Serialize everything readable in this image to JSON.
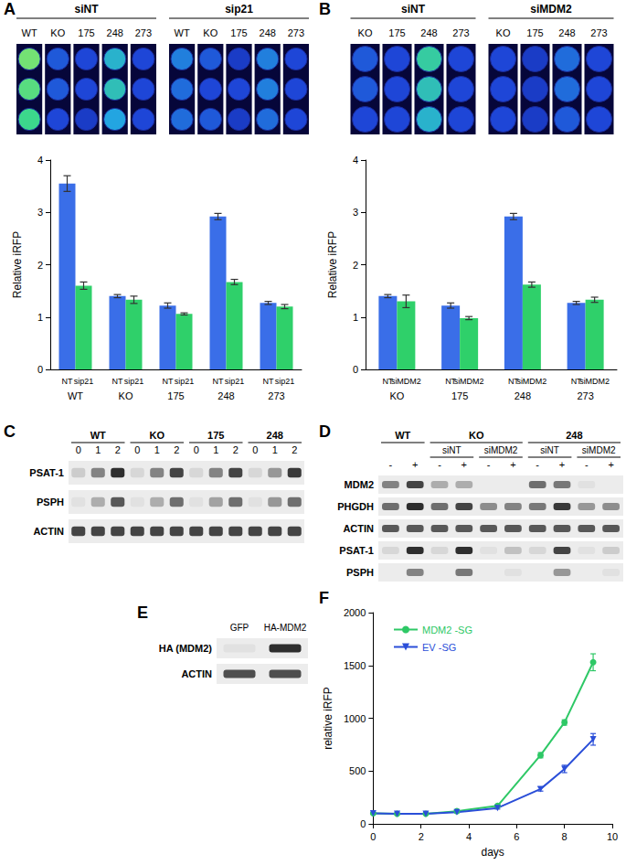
{
  "chart_data": [
    {
      "panel": "A",
      "type": "bar",
      "ylabel": "Relative iRFP",
      "ylim": [
        0,
        4
      ],
      "yticks": [
        0,
        1,
        2,
        3,
        4
      ],
      "categories": [
        "WT",
        "KO",
        "175",
        "248",
        "273"
      ],
      "series": [
        {
          "name": "NT",
          "color": "#3a6ee8",
          "values": [
            3.55,
            1.4,
            1.22,
            2.92,
            1.27
          ],
          "errors": [
            0.15,
            0.03,
            0.05,
            0.06,
            0.03
          ]
        },
        {
          "name": "sip21",
          "color": "#2fd06a",
          "values": [
            1.6,
            1.33,
            1.06,
            1.67,
            1.2
          ],
          "errors": [
            0.07,
            0.07,
            0.02,
            0.05,
            0.04
          ]
        }
      ]
    },
    {
      "panel": "B",
      "type": "bar",
      "ylabel": "Relative iRFP",
      "ylim": [
        0,
        4
      ],
      "yticks": [
        0,
        1,
        2,
        3,
        4
      ],
      "categories": [
        "KO",
        "175",
        "248",
        "273"
      ],
      "series": [
        {
          "name": "NT",
          "color": "#3a6ee8",
          "values": [
            1.4,
            1.22,
            2.92,
            1.27
          ],
          "errors": [
            0.03,
            0.05,
            0.06,
            0.03
          ]
        },
        {
          "name": "siMDM2",
          "color": "#2fd06a",
          "values": [
            1.3,
            0.98,
            1.62,
            1.33
          ],
          "errors": [
            0.12,
            0.03,
            0.05,
            0.05
          ]
        }
      ]
    },
    {
      "panel": "F",
      "type": "line",
      "xlabel": "days",
      "ylabel": "relative iRFP",
      "xlim": [
        0,
        10
      ],
      "xticks": [
        0,
        2,
        4,
        6,
        8,
        10
      ],
      "ylim": [
        0,
        2000
      ],
      "yticks": [
        0,
        500,
        1000,
        1500,
        2000
      ],
      "legend": "upper left",
      "series": [
        {
          "name": "MDM2 -SG",
          "color": "#2ec866",
          "marker": "circle",
          "x": [
            0,
            1,
            2.2,
            3.5,
            5.2,
            7,
            8,
            9.2
          ],
          "values": [
            100,
            95,
            95,
            120,
            170,
            650,
            960,
            1530
          ],
          "errors": [
            5,
            5,
            5,
            10,
            10,
            25,
            25,
            80
          ]
        },
        {
          "name": "EV -SG",
          "color": "#2a4ed8",
          "marker": "triangle_down",
          "x": [
            0,
            1,
            2.2,
            3.5,
            5.2,
            7,
            8,
            9.2
          ],
          "values": [
            100,
            95,
            95,
            110,
            150,
            330,
            520,
            800
          ],
          "errors": [
            5,
            5,
            5,
            5,
            10,
            20,
            35,
            55
          ]
        }
      ]
    }
  ],
  "wells": [
    {
      "groups": [
        {
          "label": "siNT",
          "columns": [
            {
              "label": "WT",
              "signal": [
                0.85,
                0.8,
                0.75
              ]
            },
            {
              "label": "KO",
              "signal": [
                0.35,
                0.35,
                0.3
              ]
            },
            {
              "label": "175",
              "signal": [
                0.3,
                0.3,
                0.25
              ]
            },
            {
              "label": "248",
              "signal": [
                0.6,
                0.65,
                0.55
              ]
            },
            {
              "label": "273",
              "signal": [
                0.3,
                0.3,
                0.3
              ]
            }
          ]
        },
        {
          "label": "sip21",
          "columns": [
            {
              "label": "WT",
              "signal": [
                0.45,
                0.4,
                0.4
              ]
            },
            {
              "label": "KO",
              "signal": [
                0.35,
                0.3,
                0.35
              ]
            },
            {
              "label": "175",
              "signal": [
                0.25,
                0.3,
                0.25
              ]
            },
            {
              "label": "248",
              "signal": [
                0.45,
                0.45,
                0.4
              ]
            },
            {
              "label": "273",
              "signal": [
                0.3,
                0.3,
                0.3
              ]
            }
          ]
        }
      ]
    },
    {
      "groups": [
        {
          "label": "siNT",
          "columns": [
            {
              "label": "KO",
              "signal": [
                0.35,
                0.35,
                0.3
              ]
            },
            {
              "label": "175",
              "signal": [
                0.3,
                0.3,
                0.3
              ]
            },
            {
              "label": "248",
              "signal": [
                0.7,
                0.65,
                0.6
              ]
            },
            {
              "label": "273",
              "signal": [
                0.3,
                0.3,
                0.3
              ]
            }
          ]
        },
        {
          "label": "siMDM2",
          "columns": [
            {
              "label": "KO",
              "signal": [
                0.3,
                0.3,
                0.3
              ]
            },
            {
              "label": "175",
              "signal": [
                0.25,
                0.25,
                0.25
              ]
            },
            {
              "label": "248",
              "signal": [
                0.4,
                0.4,
                0.35
              ]
            },
            {
              "label": "273",
              "signal": [
                0.3,
                0.3,
                0.3
              ]
            }
          ]
        }
      ]
    }
  ],
  "blots": [
    {
      "panel": "C",
      "groups": [
        {
          "label": "WT",
          "lanes": [
            "0",
            "1",
            "2"
          ]
        },
        {
          "label": "KO",
          "lanes": [
            "0",
            "1",
            "2"
          ]
        },
        {
          "label": "175",
          "lanes": [
            "0",
            "1",
            "2"
          ]
        },
        {
          "label": "248",
          "lanes": [
            "0",
            "1",
            "2"
          ]
        }
      ],
      "rows": [
        {
          "label": "PSAT-1",
          "intensity": [
            0.15,
            0.5,
            0.9,
            0.1,
            0.5,
            0.8,
            0.1,
            0.5,
            0.8,
            0.1,
            0.4,
            0.85
          ]
        },
        {
          "label": "PSPH",
          "intensity": [
            0.05,
            0.3,
            0.7,
            0.05,
            0.3,
            0.6,
            0.05,
            0.35,
            0.6,
            0.05,
            0.4,
            0.6
          ]
        },
        {
          "label": "ACTIN",
          "intensity": [
            0.8,
            0.8,
            0.8,
            0.8,
            0.8,
            0.8,
            0.8,
            0.8,
            0.8,
            0.8,
            0.8,
            0.8
          ]
        }
      ]
    },
    {
      "panel": "D",
      "groups": [
        {
          "label": "WT",
          "lanes": [
            "-",
            "+"
          ]
        },
        {
          "label": "KO",
          "subgroups": [
            {
              "label": "siNT",
              "lanes": [
                "-",
                "+"
              ]
            },
            {
              "label": "siMDM2",
              "lanes": [
                "-",
                "+"
              ]
            }
          ]
        },
        {
          "label": "248",
          "subgroups": [
            {
              "label": "siNT",
              "lanes": [
                "-",
                "+"
              ]
            },
            {
              "label": "siMDM2",
              "lanes": [
                "-",
                "+"
              ]
            }
          ]
        }
      ],
      "rows": [
        {
          "label": "MDM2",
          "intensity": [
            0.5,
            0.8,
            0.3,
            0.3,
            0.0,
            0.0,
            0.6,
            0.55,
            0.05,
            0.0
          ]
        },
        {
          "label": "PHGDH",
          "intensity": [
            0.6,
            0.9,
            0.6,
            0.8,
            0.45,
            0.5,
            0.55,
            0.85,
            0.4,
            0.45
          ]
        },
        {
          "label": "ACTIN",
          "intensity": [
            0.7,
            0.7,
            0.7,
            0.7,
            0.7,
            0.7,
            0.7,
            0.7,
            0.7,
            0.7
          ]
        },
        {
          "label": "PSAT-1",
          "intensity": [
            0.1,
            0.9,
            0.1,
            0.9,
            0.05,
            0.2,
            0.1,
            0.8,
            0.05,
            0.15
          ]
        },
        {
          "label": "PSPH",
          "intensity": [
            0.0,
            0.5,
            0.0,
            0.55,
            0.0,
            0.05,
            0.0,
            0.4,
            0.0,
            0.05
          ]
        }
      ]
    },
    {
      "panel": "E",
      "groups": [
        {
          "lanes": [
            "GFP",
            "HA-MDM2"
          ]
        }
      ],
      "rows": [
        {
          "label": "HA (MDM2)",
          "intensity": [
            0.05,
            0.9
          ]
        },
        {
          "label": "ACTIN",
          "intensity": [
            0.75,
            0.75
          ]
        }
      ]
    }
  ]
}
